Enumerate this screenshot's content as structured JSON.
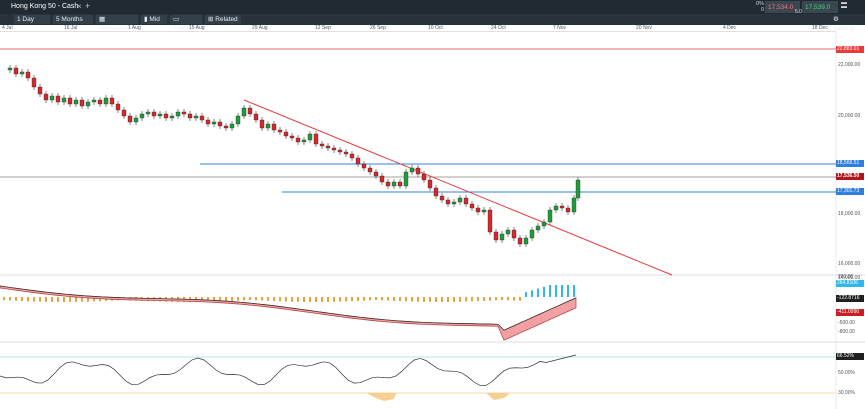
{
  "header": {
    "instrument": "Hong Kong 50 - Cash",
    "close_icon": "close-icon",
    "add_tab_icon": "plus-icon"
  },
  "toolbar": {
    "interval": "1 Day",
    "range": "5 Months",
    "templates": "Templates",
    "price_type": "Mid",
    "forum": "Forum",
    "related": "Related",
    "settings": "Settings"
  },
  "quote": {
    "change_pct": "0%",
    "change_abs": "0",
    "sell": "17,534.0",
    "buy": "17,539.0",
    "spread": "5.0"
  },
  "date_axis": [
    "4 Jul",
    "16 Jul",
    "1 Aug",
    "15 Aug",
    "29 Aug",
    "12 Sep",
    "26 Sep",
    "10 Oct",
    "24 Oct",
    "7 Nov",
    "20 Nov",
    "4 Dec",
    "18 Dec"
  ],
  "price_axis": [
    "22,000.00",
    "20,000.00",
    "18,000.00",
    "16,000.00",
    "14,000.00"
  ],
  "price_tags": {
    "red_line": "22,883.01",
    "blue_upper": "18,566.51",
    "current": "17,536.50",
    "blue_lower": "17,301.73"
  },
  "macd_axis": {
    "histogram_tag": "264.8106",
    "macd_tag": "-122.8716",
    "signal_tag": "-411.0990",
    "tick_200": "200.00",
    "tick_n500": "-500.00",
    "tick_n800": "-800.00"
  },
  "rsi_axis": {
    "current_tag": "66.52%",
    "tick_50": "50.00%",
    "tick_30": "30.00%"
  },
  "colors": {
    "up": "#1e9e3a",
    "down": "#d8262b",
    "trendline": "#e8393c",
    "horizontal": "#2f7fe0",
    "toolbar": "#27323b"
  }
}
